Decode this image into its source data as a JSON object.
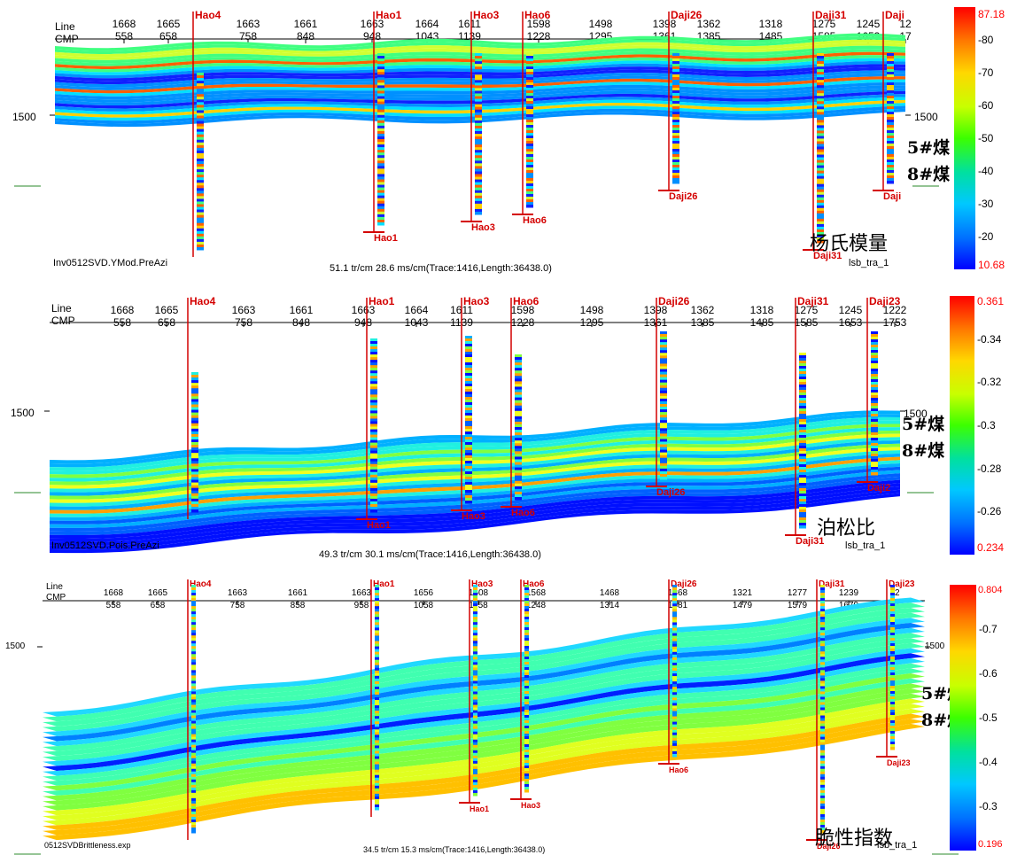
{
  "panels": [
    {
      "name": "ymod",
      "header_left": [
        "Line",
        "CMP"
      ],
      "line_ticks": [
        "1668",
        "1665",
        "1663",
        "1661",
        "1663",
        "1664",
        "1611",
        "1598",
        "1498",
        "1398",
        "1362",
        "1318",
        "1275",
        "1245",
        "12"
      ],
      "cmp_ticks": [
        "558",
        "658",
        "758",
        "848",
        "948",
        "1043",
        "1139",
        "1228",
        "1295",
        "1361",
        "1385",
        "1485",
        "1585",
        "1653",
        "17"
      ],
      "depth_label": "1500",
      "right_depth_label": "1500",
      "wells": [
        "Hao4",
        "Hao1",
        "Hao3",
        "Hao6",
        "Daji26",
        "Daji31",
        "Daji"
      ],
      "well_bottoms": [
        "Hao1",
        "Hao3",
        "Hao6",
        "Daji26",
        "Daji31",
        "Daji"
      ],
      "coal_5": "5#煤",
      "coal_8": "8#煤",
      "attr_cn": "杨氏模量",
      "file": "Inv0512SVD.YMod.PreAzi",
      "scale": "51.1 tr/cm 28.6 ms/cm(Trace:1416,Length:36438.0)",
      "corner": "lsb_tra_1",
      "colorbar": {
        "max": "87.18",
        "min": "10.68",
        "ticks": [
          "80",
          "70",
          "60",
          "50",
          "40",
          "30",
          "20"
        ],
        "colors": [
          "#ff0000",
          "#ff7a00",
          "#ffd700",
          "#c8ff00",
          "#3cff00",
          "#00e0a0",
          "#00c8ff",
          "#0070ff",
          "#0000ff"
        ]
      }
    },
    {
      "name": "pois",
      "header_left": [
        "Line",
        "CMP"
      ],
      "line_ticks": [
        "1668",
        "1665",
        "1663",
        "1661",
        "1663",
        "1664",
        "1611",
        "1598",
        "1498",
        "1398",
        "1362",
        "1318",
        "1275",
        "1245",
        "1222"
      ],
      "cmp_ticks": [
        "558",
        "658",
        "758",
        "848",
        "948",
        "1043",
        "1139",
        "1228",
        "1295",
        "1361",
        "1385",
        "1485",
        "1585",
        "1653",
        "1753"
      ],
      "depth_label": "1500",
      "right_depth_label": "1500",
      "wells": [
        "Hao4",
        "Hao1",
        "Hao3",
        "Hao6",
        "Daji26",
        "Daji31",
        "Daji23"
      ],
      "well_bottoms": [
        "Hao1",
        "Hao3",
        "Hao6",
        "Daji26",
        "Daji31",
        "Daji2"
      ],
      "coal_5": "5#煤",
      "coal_8": "8#煤",
      "attr_cn": "泊松比",
      "file": "Inv0512SVD.Pois.PreAzi",
      "scale": "49.3 tr/cm 30.1 ms/cm(Trace:1416,Length:36438.0)",
      "corner": "lsb_tra_1",
      "colorbar": {
        "max": "0.361",
        "min": "0.234",
        "ticks": [
          "0.34",
          "0.32",
          "0.3",
          "0.28",
          "0.26"
        ],
        "colors": [
          "#0000ff",
          "#0070ff",
          "#00c8ff",
          "#00e0a0",
          "#3cff00",
          "#c8ff00",
          "#ffd700",
          "#ff7a00",
          "#ff0000"
        ]
      }
    },
    {
      "name": "brittle",
      "header_left": [
        "Line",
        "CMP"
      ],
      "line_ticks": [
        "1668",
        "1665",
        "1663",
        "1661",
        "1663",
        "1656",
        "1608",
        "1568",
        "1468",
        "1368",
        "1321",
        "1277",
        "1239",
        "12"
      ],
      "cmp_ticks": [
        "558",
        "658",
        "758",
        "858",
        "958",
        "1058",
        "1158",
        "1248",
        "1314",
        "1381",
        "1479",
        "1579",
        "1679",
        "17"
      ],
      "depth_label": "1500",
      "right_depth_label": "1500",
      "wells": [
        "Hao4",
        "Hao1",
        "Hao3",
        "Hao6",
        "Daji26",
        "Daji31",
        "Daji23"
      ],
      "well_bottoms": [
        "Hao1",
        "Hao3",
        "Hao6",
        "Daji26",
        "Daji23"
      ],
      "coal_5": "5#煤",
      "coal_8": "8#煤",
      "attr_cn": "脆性指数",
      "file": "0512SVDBrittleness.exp",
      "scale": "34.5 tr/cm 15.3 ms/cm(Trace:1416,Length:36438.0)",
      "corner": "lsb_tra_1",
      "colorbar": {
        "max": "0.804",
        "min": "0.196",
        "ticks": [
          "0.7",
          "0.6",
          "0.5",
          "0.4",
          "0.3"
        ],
        "colors": [
          "#0000ff",
          "#0070ff",
          "#00c8ff",
          "#00e0a0",
          "#3cff00",
          "#c8ff00",
          "#ffd700",
          "#ff7a00",
          "#ff0000"
        ]
      }
    }
  ]
}
